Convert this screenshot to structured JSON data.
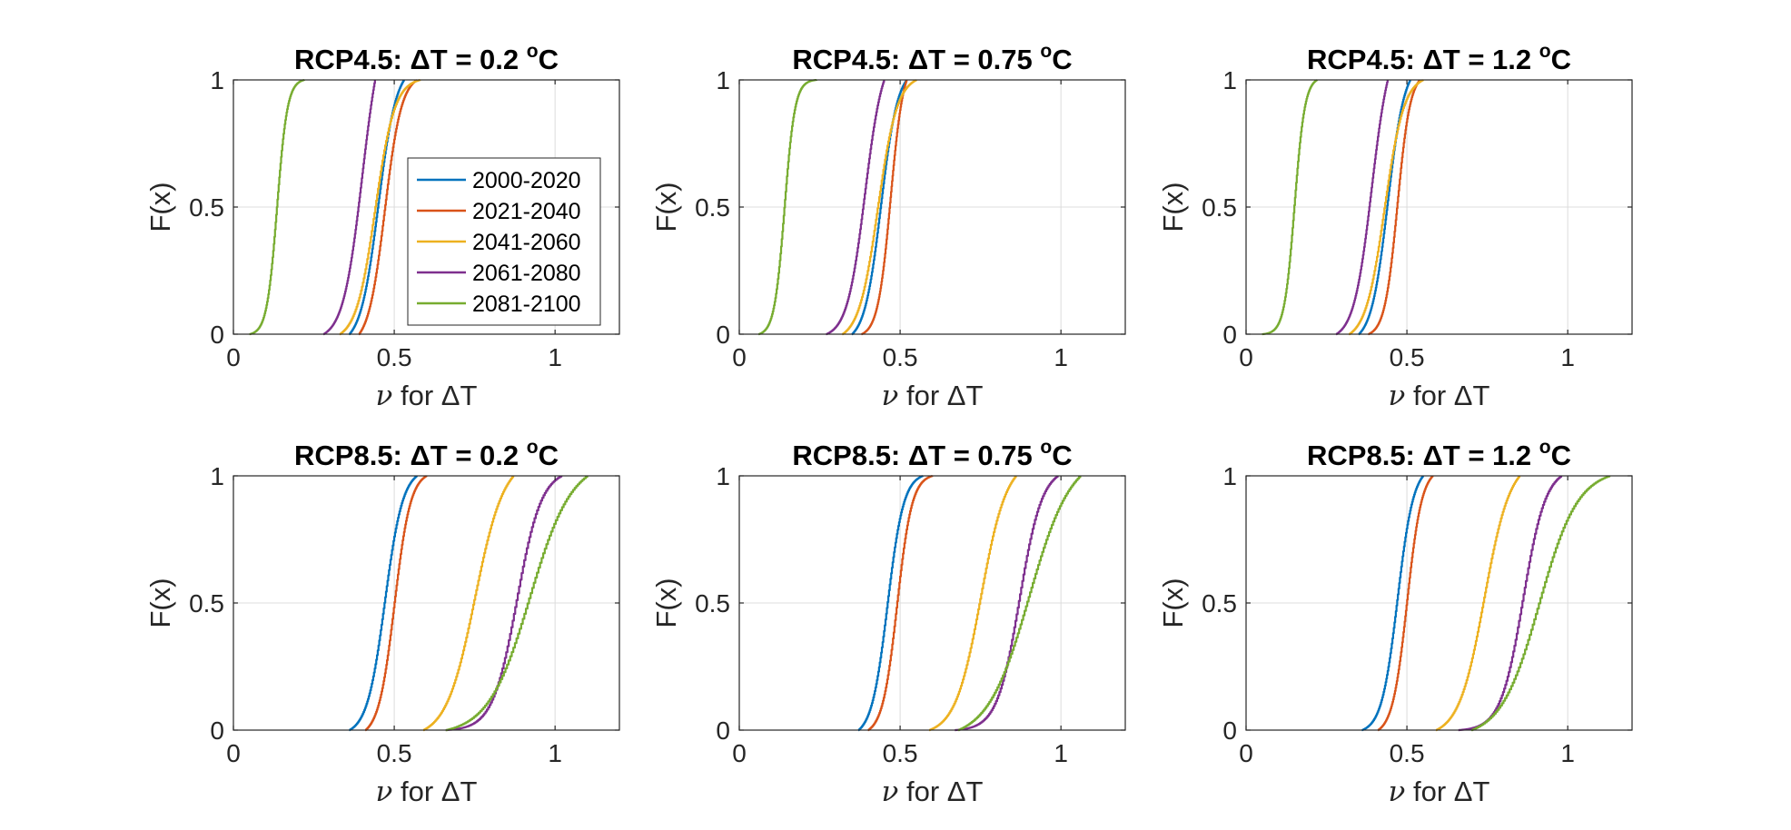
{
  "chart_data": [
    {
      "type": "line",
      "title": "RCP4.5: ΔT = 0.2 °C",
      "title_main": "RCP4.5: ΔT = 0.2 ",
      "title_sup": "o",
      "title_unit": "C",
      "xlabel": "ν for ΔT",
      "xlabel_sym": "ν",
      "xlabel_rest": " for ΔT",
      "ylabel": "F(x)",
      "xlim": [
        0,
        1.2
      ],
      "ylim": [
        0,
        1
      ],
      "xticks": [
        "0",
        "0.5",
        "1"
      ],
      "yticks": [
        "0",
        "0.5",
        "1"
      ],
      "grid": true,
      "legend": "inside right",
      "series": [
        {
          "name": "2000-2020",
          "color": "#0072BD",
          "median": 0.45,
          "spread": 0.028,
          "min": 0.36,
          "max": 0.53
        },
        {
          "name": "2021-2040",
          "color": "#D95319",
          "median": 0.47,
          "spread": 0.026,
          "min": 0.39,
          "max": 0.57
        },
        {
          "name": "2041-2060",
          "color": "#EDB120",
          "median": 0.44,
          "spread": 0.03,
          "min": 0.33,
          "max": 0.58
        },
        {
          "name": "2061-2080",
          "color": "#7E2F8E",
          "median": 0.4,
          "spread": 0.03,
          "min": 0.28,
          "max": 0.44
        },
        {
          "name": "2081-2100",
          "color": "#77AC30",
          "median": 0.135,
          "spread": 0.016,
          "min": 0.05,
          "max": 0.22
        }
      ]
    },
    {
      "type": "line",
      "title": "RCP4.5: ΔT = 0.75 °C",
      "title_main": "RCP4.5: ΔT = 0.75 ",
      "title_sup": "o",
      "title_unit": "C",
      "xlabel": "ν for ΔT",
      "xlabel_sym": "ν",
      "xlabel_rest": " for ΔT",
      "ylabel": "F(x)",
      "xlim": [
        0,
        1.2
      ],
      "ylim": [
        0,
        1
      ],
      "xticks": [
        "0",
        "0.5",
        "1"
      ],
      "yticks": [
        "0",
        "0.5",
        "1"
      ],
      "grid": true,
      "series": [
        {
          "name": "2000-2020",
          "color": "#0072BD",
          "median": 0.44,
          "spread": 0.026,
          "min": 0.35,
          "max": 0.52
        },
        {
          "name": "2021-2040",
          "color": "#D95319",
          "median": 0.47,
          "spread": 0.02,
          "min": 0.38,
          "max": 0.52
        },
        {
          "name": "2041-2060",
          "color": "#EDB120",
          "median": 0.43,
          "spread": 0.03,
          "min": 0.32,
          "max": 0.55
        },
        {
          "name": "2061-2080",
          "color": "#7E2F8E",
          "median": 0.39,
          "spread": 0.028,
          "min": 0.27,
          "max": 0.45
        },
        {
          "name": "2081-2100",
          "color": "#77AC30",
          "median": 0.14,
          "spread": 0.016,
          "min": 0.06,
          "max": 0.24
        }
      ]
    },
    {
      "type": "line",
      "title": "RCP4.5: ΔT = 1.2 °C",
      "title_main": "RCP4.5: ΔT = 1.2 ",
      "title_sup": "o",
      "title_unit": "C",
      "xlabel": "ν for ΔT",
      "xlabel_sym": "ν",
      "xlabel_rest": " for ΔT",
      "ylabel": "F(x)",
      "xlim": [
        0,
        1.2
      ],
      "ylim": [
        0,
        1
      ],
      "xticks": [
        "0",
        "0.5",
        "1"
      ],
      "yticks": [
        "0",
        "0.5",
        "1"
      ],
      "grid": true,
      "series": [
        {
          "name": "2000-2020",
          "color": "#0072BD",
          "median": 0.44,
          "spread": 0.026,
          "min": 0.35,
          "max": 0.51
        },
        {
          "name": "2021-2040",
          "color": "#D95319",
          "median": 0.47,
          "spread": 0.02,
          "min": 0.38,
          "max": 0.54
        },
        {
          "name": "2041-2060",
          "color": "#EDB120",
          "median": 0.43,
          "spread": 0.03,
          "min": 0.32,
          "max": 0.55
        },
        {
          "name": "2061-2080",
          "color": "#7E2F8E",
          "median": 0.39,
          "spread": 0.028,
          "min": 0.28,
          "max": 0.44
        },
        {
          "name": "2081-2100",
          "color": "#77AC30",
          "median": 0.15,
          "spread": 0.016,
          "min": 0.05,
          "max": 0.22
        }
      ]
    },
    {
      "type": "line",
      "title": "RCP8.5: ΔT = 0.2 °C",
      "title_main": "RCP8.5: ΔT = 0.2 ",
      "title_sup": "o",
      "title_unit": "C",
      "xlabel": "ν for ΔT",
      "xlabel_sym": "ν",
      "xlabel_rest": " for ΔT",
      "ylabel": "F(x)",
      "xlim": [
        0,
        1.2
      ],
      "ylim": [
        0,
        1
      ],
      "xticks": [
        "0",
        "0.5",
        "1"
      ],
      "yticks": [
        "0",
        "0.5",
        "1"
      ],
      "grid": true,
      "series": [
        {
          "name": "2000-2020",
          "color": "#0072BD",
          "median": 0.47,
          "spread": 0.028,
          "min": 0.36,
          "max": 0.57
        },
        {
          "name": "2021-2040",
          "color": "#D95319",
          "median": 0.5,
          "spread": 0.025,
          "min": 0.41,
          "max": 0.6
        },
        {
          "name": "2041-2060",
          "color": "#EDB120",
          "median": 0.75,
          "spread": 0.045,
          "min": 0.59,
          "max": 0.87
        },
        {
          "name": "2061-2080",
          "color": "#7E2F8E",
          "median": 0.88,
          "spread": 0.038,
          "min": 0.66,
          "max": 1.02
        },
        {
          "name": "2081-2100",
          "color": "#77AC30",
          "median": 0.92,
          "spread": 0.065,
          "min": 0.66,
          "max": 1.1
        }
      ]
    },
    {
      "type": "line",
      "title": "RCP8.5: ΔT = 0.75 °C",
      "title_main": "RCP8.5: ΔT = 0.75 ",
      "title_sup": "o",
      "title_unit": "C",
      "xlabel": "ν for ΔT",
      "xlabel_sym": "ν",
      "xlabel_rest": " for ΔT",
      "ylabel": "F(x)",
      "xlim": [
        0,
        1.2
      ],
      "ylim": [
        0,
        1
      ],
      "xticks": [
        "0",
        "0.5",
        "1"
      ],
      "yticks": [
        "0",
        "0.5",
        "1"
      ],
      "grid": true,
      "series": [
        {
          "name": "2000-2020",
          "color": "#0072BD",
          "median": 0.46,
          "spread": 0.025,
          "min": 0.37,
          "max": 0.57
        },
        {
          "name": "2021-2040",
          "color": "#D95319",
          "median": 0.49,
          "spread": 0.023,
          "min": 0.4,
          "max": 0.6
        },
        {
          "name": "2041-2060",
          "color": "#EDB120",
          "median": 0.75,
          "spread": 0.04,
          "min": 0.59,
          "max": 0.86
        },
        {
          "name": "2061-2080",
          "color": "#7E2F8E",
          "median": 0.87,
          "spread": 0.035,
          "min": 0.67,
          "max": 0.99
        },
        {
          "name": "2081-2100",
          "color": "#77AC30",
          "median": 0.9,
          "spread": 0.065,
          "min": 0.68,
          "max": 1.06
        }
      ]
    },
    {
      "type": "line",
      "title": "RCP8.5: ΔT = 1.2 °C",
      "title_main": "RCP8.5: ΔT = 1.2 ",
      "title_sup": "o",
      "title_unit": "C",
      "xlabel": "ν for ΔT",
      "xlabel_sym": "ν",
      "xlabel_rest": " for ΔT",
      "ylabel": "F(x)",
      "xlim": [
        0,
        1.2
      ],
      "ylim": [
        0,
        1
      ],
      "xticks": [
        "0",
        "0.5",
        "1"
      ],
      "yticks": [
        "0",
        "0.5",
        "1"
      ],
      "grid": true,
      "series": [
        {
          "name": "2000-2020",
          "color": "#0072BD",
          "median": 0.47,
          "spread": 0.025,
          "min": 0.36,
          "max": 0.55
        },
        {
          "name": "2021-2040",
          "color": "#D95319",
          "median": 0.5,
          "spread": 0.023,
          "min": 0.41,
          "max": 0.58
        },
        {
          "name": "2041-2060",
          "color": "#EDB120",
          "median": 0.74,
          "spread": 0.04,
          "min": 0.59,
          "max": 0.85
        },
        {
          "name": "2061-2080",
          "color": "#7E2F8E",
          "median": 0.86,
          "spread": 0.035,
          "min": 0.66,
          "max": 0.98
        },
        {
          "name": "2081-2100",
          "color": "#77AC30",
          "median": 0.91,
          "spread": 0.06,
          "min": 0.7,
          "max": 1.13
        }
      ]
    }
  ]
}
